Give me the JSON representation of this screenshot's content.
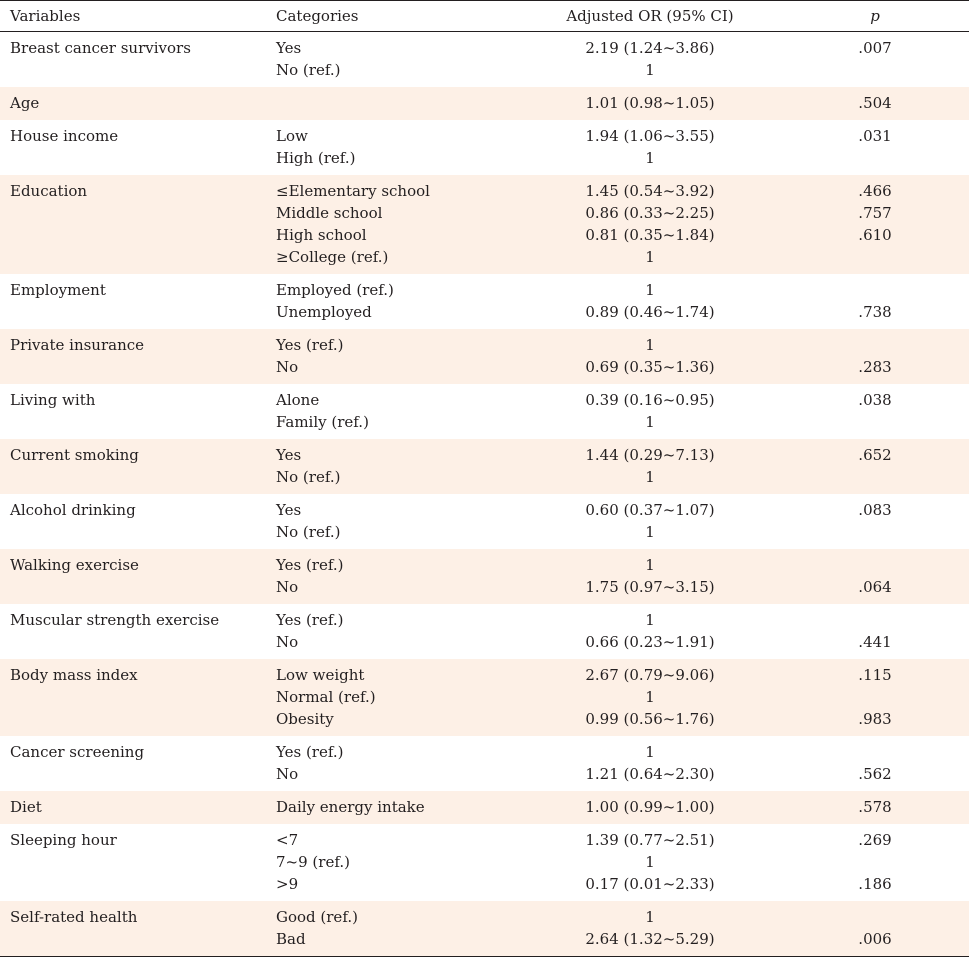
{
  "headers": {
    "variables": "Variables",
    "categories": "Categories",
    "or": "Adjusted OR (95% CI)",
    "p": "p"
  },
  "groups": [
    {
      "variable": "Breast cancer survivors",
      "rows": [
        {
          "category": "Yes",
          "or": "2.19 (1.24~3.86)",
          "p": ".007"
        },
        {
          "category": "No (ref.)",
          "or": "1",
          "p": ""
        }
      ]
    },
    {
      "variable": "Age",
      "rows": [
        {
          "category": "",
          "or": "1.01 (0.98~1.05)",
          "p": ".504"
        }
      ]
    },
    {
      "variable": "House income",
      "rows": [
        {
          "category": "Low",
          "or": "1.94 (1.06~3.55)",
          "p": ".031"
        },
        {
          "category": "High (ref.)",
          "or": "1",
          "p": ""
        }
      ]
    },
    {
      "variable": "Education",
      "rows": [
        {
          "category": "≤Elementary school",
          "or": "1.45 (0.54~3.92)",
          "p": ".466"
        },
        {
          "category": "Middle school",
          "or": "0.86 (0.33~2.25)",
          "p": ".757"
        },
        {
          "category": "High school",
          "or": "0.81 (0.35~1.84)",
          "p": ".610"
        },
        {
          "category": "≥College (ref.)",
          "or": "1",
          "p": ""
        }
      ]
    },
    {
      "variable": "Employment",
      "rows": [
        {
          "category": "Employed (ref.)",
          "or": "1",
          "p": ""
        },
        {
          "category": "Unemployed",
          "or": "0.89 (0.46~1.74)",
          "p": ".738"
        }
      ]
    },
    {
      "variable": "Private insurance",
      "rows": [
        {
          "category": "Yes (ref.)",
          "or": "1",
          "p": ""
        },
        {
          "category": "No",
          "or": "0.69 (0.35~1.36)",
          "p": ".283"
        }
      ]
    },
    {
      "variable": "Living with",
      "rows": [
        {
          "category": "Alone",
          "or": "0.39 (0.16~0.95)",
          "p": ".038"
        },
        {
          "category": "Family (ref.)",
          "or": "1",
          "p": ""
        }
      ]
    },
    {
      "variable": "Current smoking",
      "rows": [
        {
          "category": "Yes",
          "or": "1.44 (0.29~7.13)",
          "p": ".652"
        },
        {
          "category": "No (ref.)",
          "or": "1",
          "p": ""
        }
      ]
    },
    {
      "variable": "Alcohol drinking",
      "rows": [
        {
          "category": "Yes",
          "or": "0.60 (0.37~1.07)",
          "p": ".083"
        },
        {
          "category": "No (ref.)",
          "or": "1",
          "p": ""
        }
      ]
    },
    {
      "variable": "Walking exercise",
      "rows": [
        {
          "category": "Yes (ref.)",
          "or": "1",
          "p": ""
        },
        {
          "category": "No",
          "or": "1.75 (0.97~3.15)",
          "p": ".064"
        }
      ]
    },
    {
      "variable": "Muscular strength exercise",
      "rows": [
        {
          "category": "Yes (ref.)",
          "or": "1",
          "p": ""
        },
        {
          "category": "No",
          "or": "0.66 (0.23~1.91)",
          "p": ".441"
        }
      ]
    },
    {
      "variable": "Body mass index",
      "rows": [
        {
          "category": "Low weight",
          "or": "2.67 (0.79~9.06)",
          "p": ".115"
        },
        {
          "category": "Normal (ref.)",
          "or": "1",
          "p": ""
        },
        {
          "category": "Obesity",
          "or": "0.99 (0.56~1.76)",
          "p": ".983"
        }
      ]
    },
    {
      "variable": "Cancer screening",
      "rows": [
        {
          "category": "Yes (ref.)",
          "or": "1",
          "p": ""
        },
        {
          "category": "No",
          "or": "1.21 (0.64~2.30)",
          "p": ".562"
        }
      ]
    },
    {
      "variable": "Diet",
      "rows": [
        {
          "category": "Daily energy intake",
          "or": "1.00 (0.99~1.00)",
          "p": ".578"
        }
      ]
    },
    {
      "variable": "Sleeping hour",
      "rows": [
        {
          "category": "<7",
          "or": "1.39 (0.77~2.51)",
          "p": ".269"
        },
        {
          "category": "7~9 (ref.)",
          "or": "1",
          "p": ""
        },
        {
          "category": ">9",
          "or": "0.17 (0.01~2.33)",
          "p": ".186"
        }
      ]
    },
    {
      "variable": "Self-rated health",
      "rows": [
        {
          "category": "Good (ref.)",
          "or": "1",
          "p": ""
        },
        {
          "category": "Bad",
          "or": "2.64 (1.32~5.29)",
          "p": ".006"
        }
      ]
    }
  ]
}
